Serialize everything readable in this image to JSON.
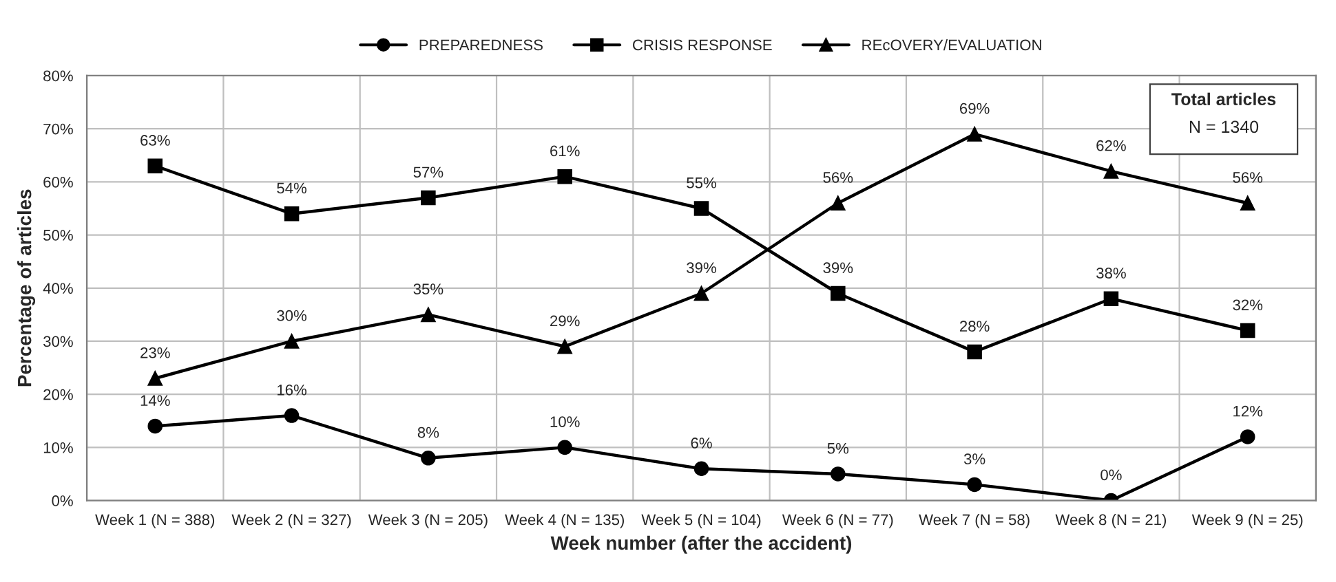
{
  "chart_data": {
    "type": "line",
    "xlabel": "Week number (after the accident)",
    "ylabel": "Percentage of articles",
    "categories": [
      "Week 1 (N = 388)",
      "Week 2 (N = 327)",
      "Week 3 (N = 205)",
      "Week 4 (N = 135)",
      "Week 5 (N = 104)",
      "Week 6 (N = 77)",
      "Week 7 (N = 58)",
      "Week 8 (N = 21)",
      "Week 9 (N = 25)"
    ],
    "series": [
      {
        "name": "PREPAREDNESS",
        "color": "#000000",
        "marker": "circle",
        "values": [
          14,
          16,
          8,
          10,
          6,
          5,
          3,
          0,
          12
        ],
        "value_labels": [
          "14%",
          "16%",
          "8%",
          "10%",
          "6%",
          "5%",
          "3%",
          "0%",
          "12%"
        ]
      },
      {
        "name": "CRISIS RESPONSE",
        "color": "#000000",
        "marker": "square",
        "values": [
          63,
          54,
          57,
          61,
          55,
          39,
          28,
          38,
          32
        ],
        "value_labels": [
          "63%",
          "54%",
          "57%",
          "61%",
          "55%",
          "39%",
          "28%",
          "38%",
          "32%"
        ]
      },
      {
        "name": "REcOVERY/EVALUATION",
        "color": "#000000",
        "marker": "triangle",
        "values": [
          23,
          30,
          35,
          29,
          39,
          56,
          69,
          62,
          56
        ],
        "value_labels": [
          "23%",
          "30%",
          "35%",
          "29%",
          "39%",
          "56%",
          "69%",
          "62%",
          "56%"
        ]
      }
    ],
    "ylim": [
      0,
      80
    ],
    "yticks": [
      {
        "value": 0,
        "label": "0%"
      },
      {
        "value": 10,
        "label": "10%"
      },
      {
        "value": 20,
        "label": "20%"
      },
      {
        "value": 30,
        "label": "30%"
      },
      {
        "value": 40,
        "label": "40%"
      },
      {
        "value": 50,
        "label": "50%"
      },
      {
        "value": 60,
        "label": "60%"
      },
      {
        "value": 70,
        "label": "70%"
      },
      {
        "value": 80,
        "label": "80%"
      }
    ],
    "grid": true,
    "legend": "top",
    "line_style": "solid",
    "annotations": [
      "Total articles",
      "N = 1340"
    ]
  }
}
